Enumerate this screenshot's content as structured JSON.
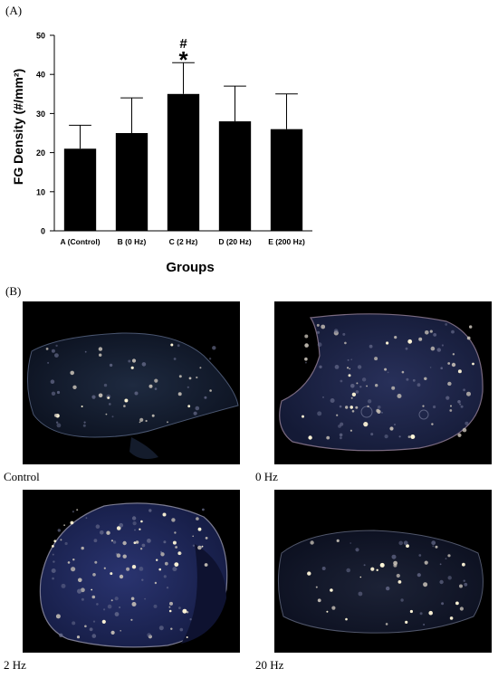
{
  "panel_a_label": "(A)",
  "panel_b_label": "(B)",
  "chart_data": {
    "type": "bar",
    "categories": [
      "A (Control)",
      "B (0 Hz)",
      "C (2 Hz)",
      "D (20 Hz)",
      "E (200 Hz)"
    ],
    "values": [
      21,
      25,
      35,
      28,
      26
    ],
    "errors": [
      6,
      9,
      8,
      9,
      9
    ],
    "ylabel": "FG Density (#/mm²)",
    "xlabel": "Groups",
    "ylim": [
      0,
      50
    ],
    "yticks": [
      0,
      10,
      20,
      30,
      40,
      50
    ],
    "annotations": [
      {
        "category": "C (2 Hz)",
        "marks": [
          "#",
          "*"
        ]
      }
    ],
    "grid": false,
    "bar_color": "#000000"
  },
  "images": [
    {
      "caption": "Control"
    },
    {
      "caption": "0 Hz"
    },
    {
      "caption": "2 Hz"
    },
    {
      "caption": "20 Hz"
    }
  ]
}
